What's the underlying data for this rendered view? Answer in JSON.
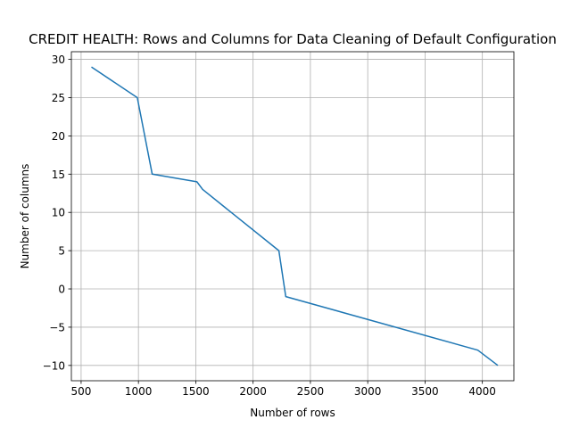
{
  "chart_data": {
    "type": "line",
    "title": "CREDIT HEALTH: Rows and Columns for Data Cleaning of Default Configuration",
    "xlabel": "Number of rows",
    "ylabel": "Number of columns",
    "xlim": [
      415,
      4275
    ],
    "ylim": [
      -12,
      31
    ],
    "xticks": [
      500,
      1000,
      1500,
      2000,
      2500,
      3000,
      3500,
      4000
    ],
    "yticks": [
      -10,
      -5,
      0,
      5,
      10,
      15,
      20,
      25,
      30
    ],
    "xtick_labels": [
      "500",
      "1000",
      "1500",
      "2000",
      "2500",
      "3000",
      "3500",
      "4000"
    ],
    "ytick_labels": [
      "−10",
      "−5",
      "0",
      "5",
      "10",
      "15",
      "20",
      "25",
      "30"
    ],
    "grid": true,
    "series": [
      {
        "color": "#1f77b4",
        "x": [
          590,
          990,
          1120,
          1510,
          1560,
          2225,
          2285,
          3960,
          4135
        ],
        "y": [
          29,
          25,
          15,
          14,
          13,
          5,
          -1,
          -8,
          -10
        ]
      }
    ]
  }
}
